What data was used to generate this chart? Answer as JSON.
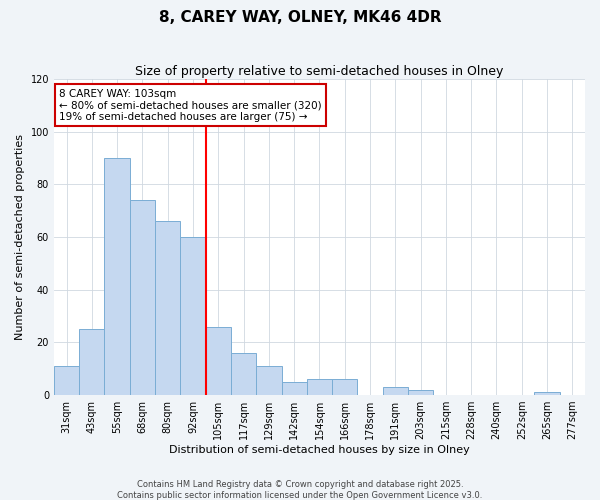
{
  "title": "8, CAREY WAY, OLNEY, MK46 4DR",
  "subtitle": "Size of property relative to semi-detached houses in Olney",
  "xlabel": "Distribution of semi-detached houses by size in Olney",
  "ylabel": "Number of semi-detached properties",
  "bar_labels": [
    "31sqm",
    "43sqm",
    "55sqm",
    "68sqm",
    "80sqm",
    "92sqm",
    "105sqm",
    "117sqm",
    "129sqm",
    "142sqm",
    "154sqm",
    "166sqm",
    "178sqm",
    "191sqm",
    "203sqm",
    "215sqm",
    "228sqm",
    "240sqm",
    "252sqm",
    "265sqm",
    "277sqm"
  ],
  "bar_values": [
    11,
    25,
    90,
    74,
    66,
    60,
    26,
    16,
    11,
    5,
    6,
    6,
    0,
    3,
    2,
    0,
    0,
    0,
    0,
    1,
    0
  ],
  "bar_color": "#c5d8f0",
  "bar_edge_color": "#7aadd4",
  "vline_color": "red",
  "vline_x_index": 6,
  "ylim": [
    0,
    120
  ],
  "annotation_title": "8 CAREY WAY: 103sqm",
  "annotation_line1": "← 80% of semi-detached houses are smaller (320)",
  "annotation_line2": "19% of semi-detached houses are larger (75) →",
  "annotation_border_color": "#cc0000",
  "footer1": "Contains HM Land Registry data © Crown copyright and database right 2025.",
  "footer2": "Contains public sector information licensed under the Open Government Licence v3.0.",
  "background_color": "#f0f4f8",
  "plot_background_color": "#ffffff",
  "title_fontsize": 11,
  "subtitle_fontsize": 9,
  "ylabel_fontsize": 8,
  "xlabel_fontsize": 8,
  "tick_fontsize": 7,
  "annotation_fontsize": 7.5,
  "footer_fontsize": 6
}
